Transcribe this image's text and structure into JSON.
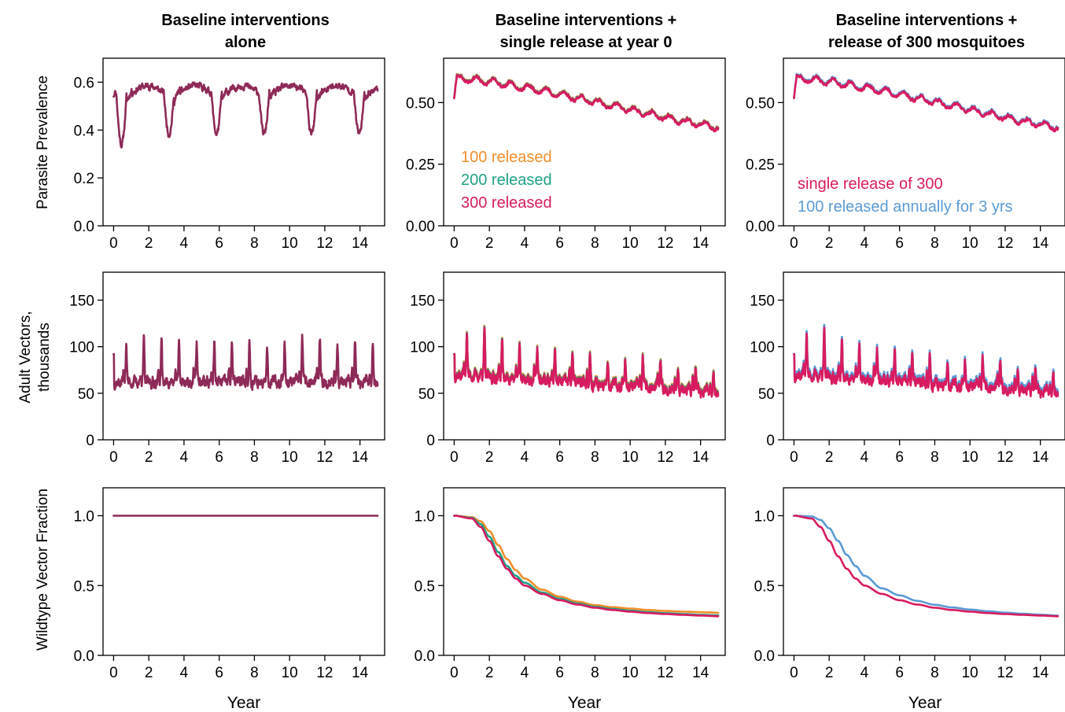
{
  "figure": {
    "column_titles": [
      [
        "Baseline interventions",
        "alone"
      ],
      [
        "Baseline interventions +",
        "single release at year 0"
      ],
      [
        "Baseline interventions +",
        "release of 300 mosquitoes"
      ]
    ],
    "row_labels": [
      [
        "Parasite Prevalence"
      ],
      [
        "Adult Vectors,",
        "thousands"
      ],
      [
        "Wildtype Vector Fraction"
      ]
    ],
    "xlabel": "Year"
  },
  "colors": {
    "baseline": "#8e2a58",
    "r100": "#f28e2b",
    "r200": "#1fa187",
    "r300": "#d81b60",
    "annual": "#5b9bd5"
  },
  "chart_data": [
    {
      "id": "prev-baseline",
      "type": "line",
      "row": 0,
      "col": 0,
      "xlim": [
        -0.6,
        15.4
      ],
      "ylim": [
        0,
        0.7
      ],
      "xticks": [
        "0",
        "2",
        "4",
        "6",
        "8",
        "10",
        "12",
        "14"
      ],
      "yticks": [
        "0.0",
        "0.2",
        "0.4",
        "0.6"
      ],
      "ytick_values": [
        0,
        0.2,
        0.4,
        0.6
      ],
      "series": [
        {
          "key": "baseline",
          "gen": "prev_base"
        }
      ],
      "legend": []
    },
    {
      "id": "prev-single",
      "type": "line",
      "row": 0,
      "col": 1,
      "xlim": [
        -0.6,
        15.4
      ],
      "ylim": [
        0,
        0.68
      ],
      "xticks": [
        "0",
        "2",
        "4",
        "6",
        "8",
        "10",
        "12",
        "14"
      ],
      "yticks": [
        "0.00",
        "0.25",
        "0.50"
      ],
      "ytick_values": [
        0,
        0.25,
        0.5
      ],
      "series": [
        {
          "key": "r100",
          "gen": "prev_rel",
          "shift": 0.004
        },
        {
          "key": "r200",
          "gen": "prev_rel",
          "shift": 0.002
        },
        {
          "key": "r300",
          "gen": "prev_rel",
          "shift": 0
        }
      ],
      "legend": [
        {
          "text": "100 released",
          "key": "r100"
        },
        {
          "text": "200 released",
          "key": "r200"
        },
        {
          "text": "300 released",
          "key": "r300"
        }
      ]
    },
    {
      "id": "prev-300",
      "type": "line",
      "row": 0,
      "col": 2,
      "xlim": [
        -0.6,
        15.4
      ],
      "ylim": [
        0,
        0.68
      ],
      "xticks": [
        "0",
        "2",
        "4",
        "6",
        "8",
        "10",
        "12",
        "14"
      ],
      "yticks": [
        "0.00",
        "0.25",
        "0.50"
      ],
      "ytick_values": [
        0,
        0.25,
        0.5
      ],
      "series": [
        {
          "key": "annual",
          "gen": "prev_rel",
          "shift": 0.004
        },
        {
          "key": "r300",
          "gen": "prev_rel",
          "shift": 0
        }
      ],
      "legend": [
        {
          "text": "single release of 300",
          "key": "r300"
        },
        {
          "text": "100 released annually for 3 yrs",
          "key": "annual"
        }
      ]
    },
    {
      "id": "vec-baseline",
      "type": "line",
      "row": 1,
      "col": 0,
      "xlim": [
        -0.6,
        15.4
      ],
      "ylim": [
        0,
        180
      ],
      "xticks": [
        "0",
        "2",
        "4",
        "6",
        "8",
        "10",
        "12",
        "14"
      ],
      "yticks": [
        "0",
        "50",
        "100",
        "150"
      ],
      "ytick_values": [
        0,
        50,
        100,
        150
      ],
      "series": [
        {
          "key": "baseline",
          "gen": "vec_base"
        }
      ],
      "legend": []
    },
    {
      "id": "vec-single",
      "type": "line",
      "row": 1,
      "col": 1,
      "xlim": [
        -0.6,
        15.4
      ],
      "ylim": [
        0,
        180
      ],
      "xticks": [
        "0",
        "2",
        "4",
        "6",
        "8",
        "10",
        "12",
        "14"
      ],
      "yticks": [
        "0",
        "50",
        "100",
        "150"
      ],
      "ytick_values": [
        0,
        50,
        100,
        150
      ],
      "series": [
        {
          "key": "r100",
          "gen": "vec_rel",
          "shift": 2
        },
        {
          "key": "r200",
          "gen": "vec_rel",
          "shift": 1
        },
        {
          "key": "r300",
          "gen": "vec_rel",
          "shift": 0
        }
      ],
      "legend": []
    },
    {
      "id": "vec-300",
      "type": "line",
      "row": 1,
      "col": 2,
      "xlim": [
        -0.6,
        15.4
      ],
      "ylim": [
        0,
        180
      ],
      "xticks": [
        "0",
        "2",
        "4",
        "6",
        "8",
        "10",
        "12",
        "14"
      ],
      "yticks": [
        "0",
        "50",
        "100",
        "150"
      ],
      "ytick_values": [
        0,
        50,
        100,
        150
      ],
      "series": [
        {
          "key": "annual",
          "gen": "vec_rel",
          "shift": 3
        },
        {
          "key": "r300",
          "gen": "vec_rel",
          "shift": 0
        }
      ],
      "legend": []
    },
    {
      "id": "wt-baseline",
      "type": "line",
      "row": 2,
      "col": 0,
      "xlim": [
        -0.6,
        15.4
      ],
      "ylim": [
        0,
        1.2
      ],
      "xticks": [
        "0",
        "2",
        "4",
        "6",
        "8",
        "10",
        "12",
        "14"
      ],
      "yticks": [
        "0.0",
        "0.5",
        "1.0"
      ],
      "ytick_values": [
        0,
        0.5,
        1.0
      ],
      "series": [
        {
          "key": "baseline",
          "gen": "const",
          "value": 1.0
        }
      ],
      "legend": []
    },
    {
      "id": "wt-single",
      "type": "line",
      "row": 2,
      "col": 1,
      "xlim": [
        -0.6,
        15.4
      ],
      "ylim": [
        0,
        1.2
      ],
      "xticks": [
        "0",
        "2",
        "4",
        "6",
        "8",
        "10",
        "12",
        "14"
      ],
      "yticks": [
        "0.0",
        "0.5",
        "1.0"
      ],
      "ytick_values": [
        0,
        0.5,
        1.0
      ],
      "series": [
        {
          "key": "r100",
          "gen": "wt",
          "points": [
            [
              0,
              1.0
            ],
            [
              1,
              0.99
            ],
            [
              1.5,
              0.96
            ],
            [
              2,
              0.89
            ],
            [
              2.5,
              0.79
            ],
            [
              3,
              0.69
            ],
            [
              3.5,
              0.61
            ],
            [
              4,
              0.55
            ],
            [
              5,
              0.47
            ],
            [
              6,
              0.42
            ],
            [
              7,
              0.385
            ],
            [
              8,
              0.36
            ],
            [
              9,
              0.345
            ],
            [
              10,
              0.335
            ],
            [
              11,
              0.325
            ],
            [
              12,
              0.318
            ],
            [
              13,
              0.313
            ],
            [
              14,
              0.309
            ],
            [
              15,
              0.305
            ]
          ]
        },
        {
          "key": "r200",
          "gen": "wt",
          "points": [
            [
              0,
              1.0
            ],
            [
              1,
              0.985
            ],
            [
              1.5,
              0.94
            ],
            [
              2,
              0.85
            ],
            [
              2.5,
              0.74
            ],
            [
              3,
              0.64
            ],
            [
              3.5,
              0.57
            ],
            [
              4,
              0.52
            ],
            [
              5,
              0.45
            ],
            [
              6,
              0.405
            ],
            [
              7,
              0.372
            ],
            [
              8,
              0.348
            ],
            [
              9,
              0.332
            ],
            [
              10,
              0.32
            ],
            [
              11,
              0.31
            ],
            [
              12,
              0.302
            ],
            [
              13,
              0.296
            ],
            [
              14,
              0.29
            ],
            [
              15,
              0.286
            ]
          ]
        },
        {
          "key": "r300",
          "gen": "wt",
          "points": [
            [
              0,
              1.0
            ],
            [
              1,
              0.98
            ],
            [
              1.5,
              0.92
            ],
            [
              2,
              0.82
            ],
            [
              2.5,
              0.71
            ],
            [
              3,
              0.62
            ],
            [
              3.5,
              0.55
            ],
            [
              4,
              0.5
            ],
            [
              5,
              0.44
            ],
            [
              6,
              0.395
            ],
            [
              7,
              0.364
            ],
            [
              8,
              0.341
            ],
            [
              9,
              0.325
            ],
            [
              10,
              0.313
            ],
            [
              11,
              0.303
            ],
            [
              12,
              0.296
            ],
            [
              13,
              0.29
            ],
            [
              14,
              0.285
            ],
            [
              15,
              0.28
            ]
          ]
        }
      ],
      "legend": []
    },
    {
      "id": "wt-300",
      "type": "line",
      "row": 2,
      "col": 2,
      "xlim": [
        -0.6,
        15.4
      ],
      "ylim": [
        0,
        1.2
      ],
      "xticks": [
        "0",
        "2",
        "4",
        "6",
        "8",
        "10",
        "12",
        "14"
      ],
      "yticks": [
        "0.0",
        "0.5",
        "1.0"
      ],
      "ytick_values": [
        0,
        0.5,
        1.0
      ],
      "series": [
        {
          "key": "annual",
          "gen": "wt",
          "points": [
            [
              0,
              1.0
            ],
            [
              1,
              0.995
            ],
            [
              1.5,
              0.97
            ],
            [
              2,
              0.91
            ],
            [
              2.5,
              0.82
            ],
            [
              3,
              0.72
            ],
            [
              3.5,
              0.64
            ],
            [
              4,
              0.57
            ],
            [
              5,
              0.48
            ],
            [
              6,
              0.43
            ],
            [
              7,
              0.39
            ],
            [
              8,
              0.362
            ],
            [
              9,
              0.343
            ],
            [
              10,
              0.328
            ],
            [
              11,
              0.316
            ],
            [
              12,
              0.306
            ],
            [
              13,
              0.298
            ],
            [
              14,
              0.291
            ],
            [
              15,
              0.285
            ]
          ]
        },
        {
          "key": "r300",
          "gen": "wt",
          "points": [
            [
              0,
              1.0
            ],
            [
              1,
              0.98
            ],
            [
              1.5,
              0.92
            ],
            [
              2,
              0.82
            ],
            [
              2.5,
              0.71
            ],
            [
              3,
              0.62
            ],
            [
              3.5,
              0.55
            ],
            [
              4,
              0.5
            ],
            [
              5,
              0.44
            ],
            [
              6,
              0.395
            ],
            [
              7,
              0.364
            ],
            [
              8,
              0.341
            ],
            [
              9,
              0.325
            ],
            [
              10,
              0.313
            ],
            [
              11,
              0.303
            ],
            [
              12,
              0.296
            ],
            [
              13,
              0.29
            ],
            [
              14,
              0.285
            ],
            [
              15,
              0.28
            ]
          ]
        }
      ],
      "legend": []
    }
  ]
}
